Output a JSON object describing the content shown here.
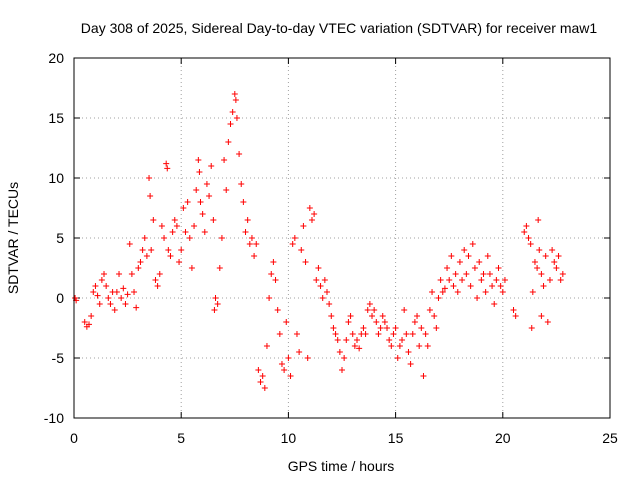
{
  "chart_data": {
    "type": "scatter",
    "title": "Day 308 of 2025, Sidereal Day-to-day VTEC variation (SDTVAR) for receiver maw1",
    "xlabel": "GPS time / hours",
    "ylabel": "SDTVAR / TECUs",
    "xlim": [
      0,
      25
    ],
    "ylim": [
      -10,
      20
    ],
    "xticks": [
      0,
      5,
      10,
      15,
      20,
      25
    ],
    "yticks": [
      -10,
      -5,
      0,
      5,
      10,
      15,
      20
    ],
    "grid": true,
    "marker": "+",
    "color": "#ff0000",
    "series": [
      {
        "name": "SDTVAR",
        "points": [
          [
            0.05,
            0.0
          ],
          [
            0.1,
            -0.2
          ],
          [
            0.5,
            -2.0
          ],
          [
            0.6,
            -2.4
          ],
          [
            0.7,
            -2.2
          ],
          [
            0.8,
            -1.5
          ],
          [
            0.9,
            0.5
          ],
          [
            1.0,
            1.0
          ],
          [
            1.1,
            0.2
          ],
          [
            1.2,
            -0.5
          ],
          [
            1.3,
            1.5
          ],
          [
            1.4,
            2.0
          ],
          [
            1.5,
            1.0
          ],
          [
            1.6,
            0.0
          ],
          [
            1.7,
            -0.5
          ],
          [
            1.8,
            0.5
          ],
          [
            1.9,
            -1.0
          ],
          [
            2.0,
            0.5
          ],
          [
            2.1,
            2.0
          ],
          [
            2.2,
            0.0
          ],
          [
            2.3,
            0.8
          ],
          [
            2.4,
            -0.5
          ],
          [
            2.5,
            0.3
          ],
          [
            2.6,
            4.5
          ],
          [
            2.7,
            2.0
          ],
          [
            2.8,
            0.5
          ],
          [
            2.9,
            -0.8
          ],
          [
            3.0,
            2.5
          ],
          [
            3.1,
            3.0
          ],
          [
            3.2,
            4.0
          ],
          [
            3.3,
            5.0
          ],
          [
            3.4,
            3.5
          ],
          [
            3.5,
            10.0
          ],
          [
            3.55,
            8.5
          ],
          [
            3.6,
            4.0
          ],
          [
            3.7,
            6.5
          ],
          [
            3.8,
            1.5
          ],
          [
            3.9,
            1.0
          ],
          [
            4.0,
            2.0
          ],
          [
            4.1,
            6.0
          ],
          [
            4.2,
            5.0
          ],
          [
            4.3,
            11.2
          ],
          [
            4.35,
            10.8
          ],
          [
            4.4,
            4.0
          ],
          [
            4.5,
            3.5
          ],
          [
            4.6,
            5.5
          ],
          [
            4.7,
            6.5
          ],
          [
            4.8,
            6.0
          ],
          [
            4.9,
            3.0
          ],
          [
            5.0,
            4.0
          ],
          [
            5.1,
            7.5
          ],
          [
            5.2,
            5.5
          ],
          [
            5.3,
            8.0
          ],
          [
            5.4,
            5.0
          ],
          [
            5.5,
            2.5
          ],
          [
            5.6,
            6.0
          ],
          [
            5.7,
            9.0
          ],
          [
            5.8,
            11.5
          ],
          [
            5.85,
            10.5
          ],
          [
            5.9,
            8.0
          ],
          [
            6.0,
            7.0
          ],
          [
            6.1,
            5.5
          ],
          [
            6.2,
            9.5
          ],
          [
            6.3,
            8.5
          ],
          [
            6.4,
            11.0
          ],
          [
            6.5,
            6.5
          ],
          [
            6.55,
            -1.0
          ],
          [
            6.6,
            0.0
          ],
          [
            6.7,
            -0.5
          ],
          [
            6.8,
            2.5
          ],
          [
            6.9,
            5.0
          ],
          [
            7.0,
            11.5
          ],
          [
            7.1,
            9.0
          ],
          [
            7.2,
            13.0
          ],
          [
            7.3,
            14.5
          ],
          [
            7.4,
            15.5
          ],
          [
            7.5,
            17.0
          ],
          [
            7.55,
            16.5
          ],
          [
            7.6,
            15.0
          ],
          [
            7.7,
            12.0
          ],
          [
            7.8,
            9.5
          ],
          [
            7.9,
            8.0
          ],
          [
            8.0,
            5.5
          ],
          [
            8.1,
            6.5
          ],
          [
            8.2,
            4.5
          ],
          [
            8.3,
            5.0
          ],
          [
            8.4,
            3.5
          ],
          [
            8.5,
            4.5
          ],
          [
            8.6,
            -6.0
          ],
          [
            8.7,
            -7.0
          ],
          [
            8.8,
            -6.5
          ],
          [
            8.9,
            -7.5
          ],
          [
            9.0,
            -4.0
          ],
          [
            9.1,
            0.0
          ],
          [
            9.2,
            2.0
          ],
          [
            9.3,
            3.0
          ],
          [
            9.4,
            1.5
          ],
          [
            9.5,
            -1.0
          ],
          [
            9.6,
            -3.0
          ],
          [
            9.7,
            -5.5
          ],
          [
            9.8,
            -6.0
          ],
          [
            9.9,
            -2.0
          ],
          [
            10.0,
            -5.0
          ],
          [
            10.1,
            -6.5
          ],
          [
            10.2,
            4.5
          ],
          [
            10.3,
            5.0
          ],
          [
            10.4,
            -3.0
          ],
          [
            10.5,
            -4.5
          ],
          [
            10.6,
            4.0
          ],
          [
            10.7,
            6.0
          ],
          [
            10.8,
            3.0
          ],
          [
            10.9,
            -5.0
          ],
          [
            11.0,
            7.5
          ],
          [
            11.1,
            6.5
          ],
          [
            11.2,
            7.0
          ],
          [
            11.3,
            1.5
          ],
          [
            11.4,
            2.5
          ],
          [
            11.5,
            1.0
          ],
          [
            11.6,
            0.0
          ],
          [
            11.7,
            1.5
          ],
          [
            11.8,
            0.5
          ],
          [
            11.9,
            -0.5
          ],
          [
            12.0,
            -1.5
          ],
          [
            12.1,
            -2.5
          ],
          [
            12.2,
            -3.0
          ],
          [
            12.3,
            -3.5
          ],
          [
            12.4,
            -4.5
          ],
          [
            12.5,
            -6.0
          ],
          [
            12.6,
            -5.0
          ],
          [
            12.7,
            -3.5
          ],
          [
            12.8,
            -2.0
          ],
          [
            12.9,
            -1.5
          ],
          [
            13.0,
            -3.0
          ],
          [
            13.1,
            -4.0
          ],
          [
            13.2,
            -3.5
          ],
          [
            13.3,
            -4.2
          ],
          [
            13.4,
            -3.0
          ],
          [
            13.5,
            -2.5
          ],
          [
            13.6,
            -3.0
          ],
          [
            13.7,
            -1.0
          ],
          [
            13.8,
            -0.5
          ],
          [
            13.9,
            -1.5
          ],
          [
            14.0,
            -1.0
          ],
          [
            14.1,
            -2.0
          ],
          [
            14.2,
            -3.0
          ],
          [
            14.3,
            -2.5
          ],
          [
            14.4,
            -1.5
          ],
          [
            14.5,
            -2.0
          ],
          [
            14.6,
            -2.5
          ],
          [
            14.7,
            -3.5
          ],
          [
            14.8,
            -4.0
          ],
          [
            14.9,
            -3.0
          ],
          [
            15.0,
            -2.5
          ],
          [
            15.1,
            -5.0
          ],
          [
            15.2,
            -4.0
          ],
          [
            15.3,
            -3.5
          ],
          [
            15.4,
            -1.0
          ],
          [
            15.5,
            -3.0
          ],
          [
            15.6,
            -4.5
          ],
          [
            15.7,
            -5.5
          ],
          [
            15.8,
            -3.0
          ],
          [
            15.9,
            -2.0
          ],
          [
            16.0,
            -1.5
          ],
          [
            16.1,
            -4.0
          ],
          [
            16.2,
            -2.5
          ],
          [
            16.3,
            -6.5
          ],
          [
            16.4,
            -3.0
          ],
          [
            16.5,
            -4.0
          ],
          [
            16.6,
            -1.0
          ],
          [
            16.7,
            0.5
          ],
          [
            16.8,
            -1.5
          ],
          [
            16.9,
            -2.5
          ],
          [
            17.0,
            0.0
          ],
          [
            17.1,
            1.5
          ],
          [
            17.2,
            0.5
          ],
          [
            17.3,
            0.8
          ],
          [
            17.4,
            2.5
          ],
          [
            17.5,
            1.5
          ],
          [
            17.6,
            3.5
          ],
          [
            17.7,
            1.0
          ],
          [
            17.8,
            2.0
          ],
          [
            17.9,
            0.5
          ],
          [
            18.0,
            3.0
          ],
          [
            18.1,
            1.5
          ],
          [
            18.2,
            4.0
          ],
          [
            18.3,
            2.0
          ],
          [
            18.4,
            3.5
          ],
          [
            18.5,
            1.0
          ],
          [
            18.6,
            4.5
          ],
          [
            18.7,
            2.5
          ],
          [
            18.8,
            0.0
          ],
          [
            18.9,
            3.0
          ],
          [
            19.0,
            1.5
          ],
          [
            19.1,
            2.0
          ],
          [
            19.2,
            0.5
          ],
          [
            19.3,
            3.5
          ],
          [
            19.4,
            2.0
          ],
          [
            19.5,
            1.0
          ],
          [
            19.6,
            -0.5
          ],
          [
            19.7,
            1.5
          ],
          [
            19.8,
            2.5
          ],
          [
            19.9,
            1.0
          ],
          [
            20.0,
            0.5
          ],
          [
            20.1,
            1.5
          ],
          [
            20.5,
            -1.0
          ],
          [
            20.6,
            -1.5
          ],
          [
            21.0,
            5.5
          ],
          [
            21.1,
            6.0
          ],
          [
            21.2,
            5.0
          ],
          [
            21.3,
            4.5
          ],
          [
            21.4,
            0.5
          ],
          [
            21.5,
            3.0
          ],
          [
            21.6,
            2.5
          ],
          [
            21.7,
            4.0
          ],
          [
            21.8,
            2.0
          ],
          [
            21.9,
            1.0
          ],
          [
            22.0,
            3.5
          ],
          [
            22.1,
            -2.0
          ],
          [
            22.2,
            1.5
          ],
          [
            22.3,
            4.0
          ],
          [
            22.4,
            3.0
          ],
          [
            22.5,
            2.5
          ],
          [
            22.6,
            3.5
          ],
          [
            22.7,
            1.5
          ],
          [
            22.8,
            2.0
          ],
          [
            21.65,
            6.5
          ],
          [
            21.35,
            -2.5
          ],
          [
            21.8,
            -1.5
          ]
        ]
      }
    ]
  }
}
